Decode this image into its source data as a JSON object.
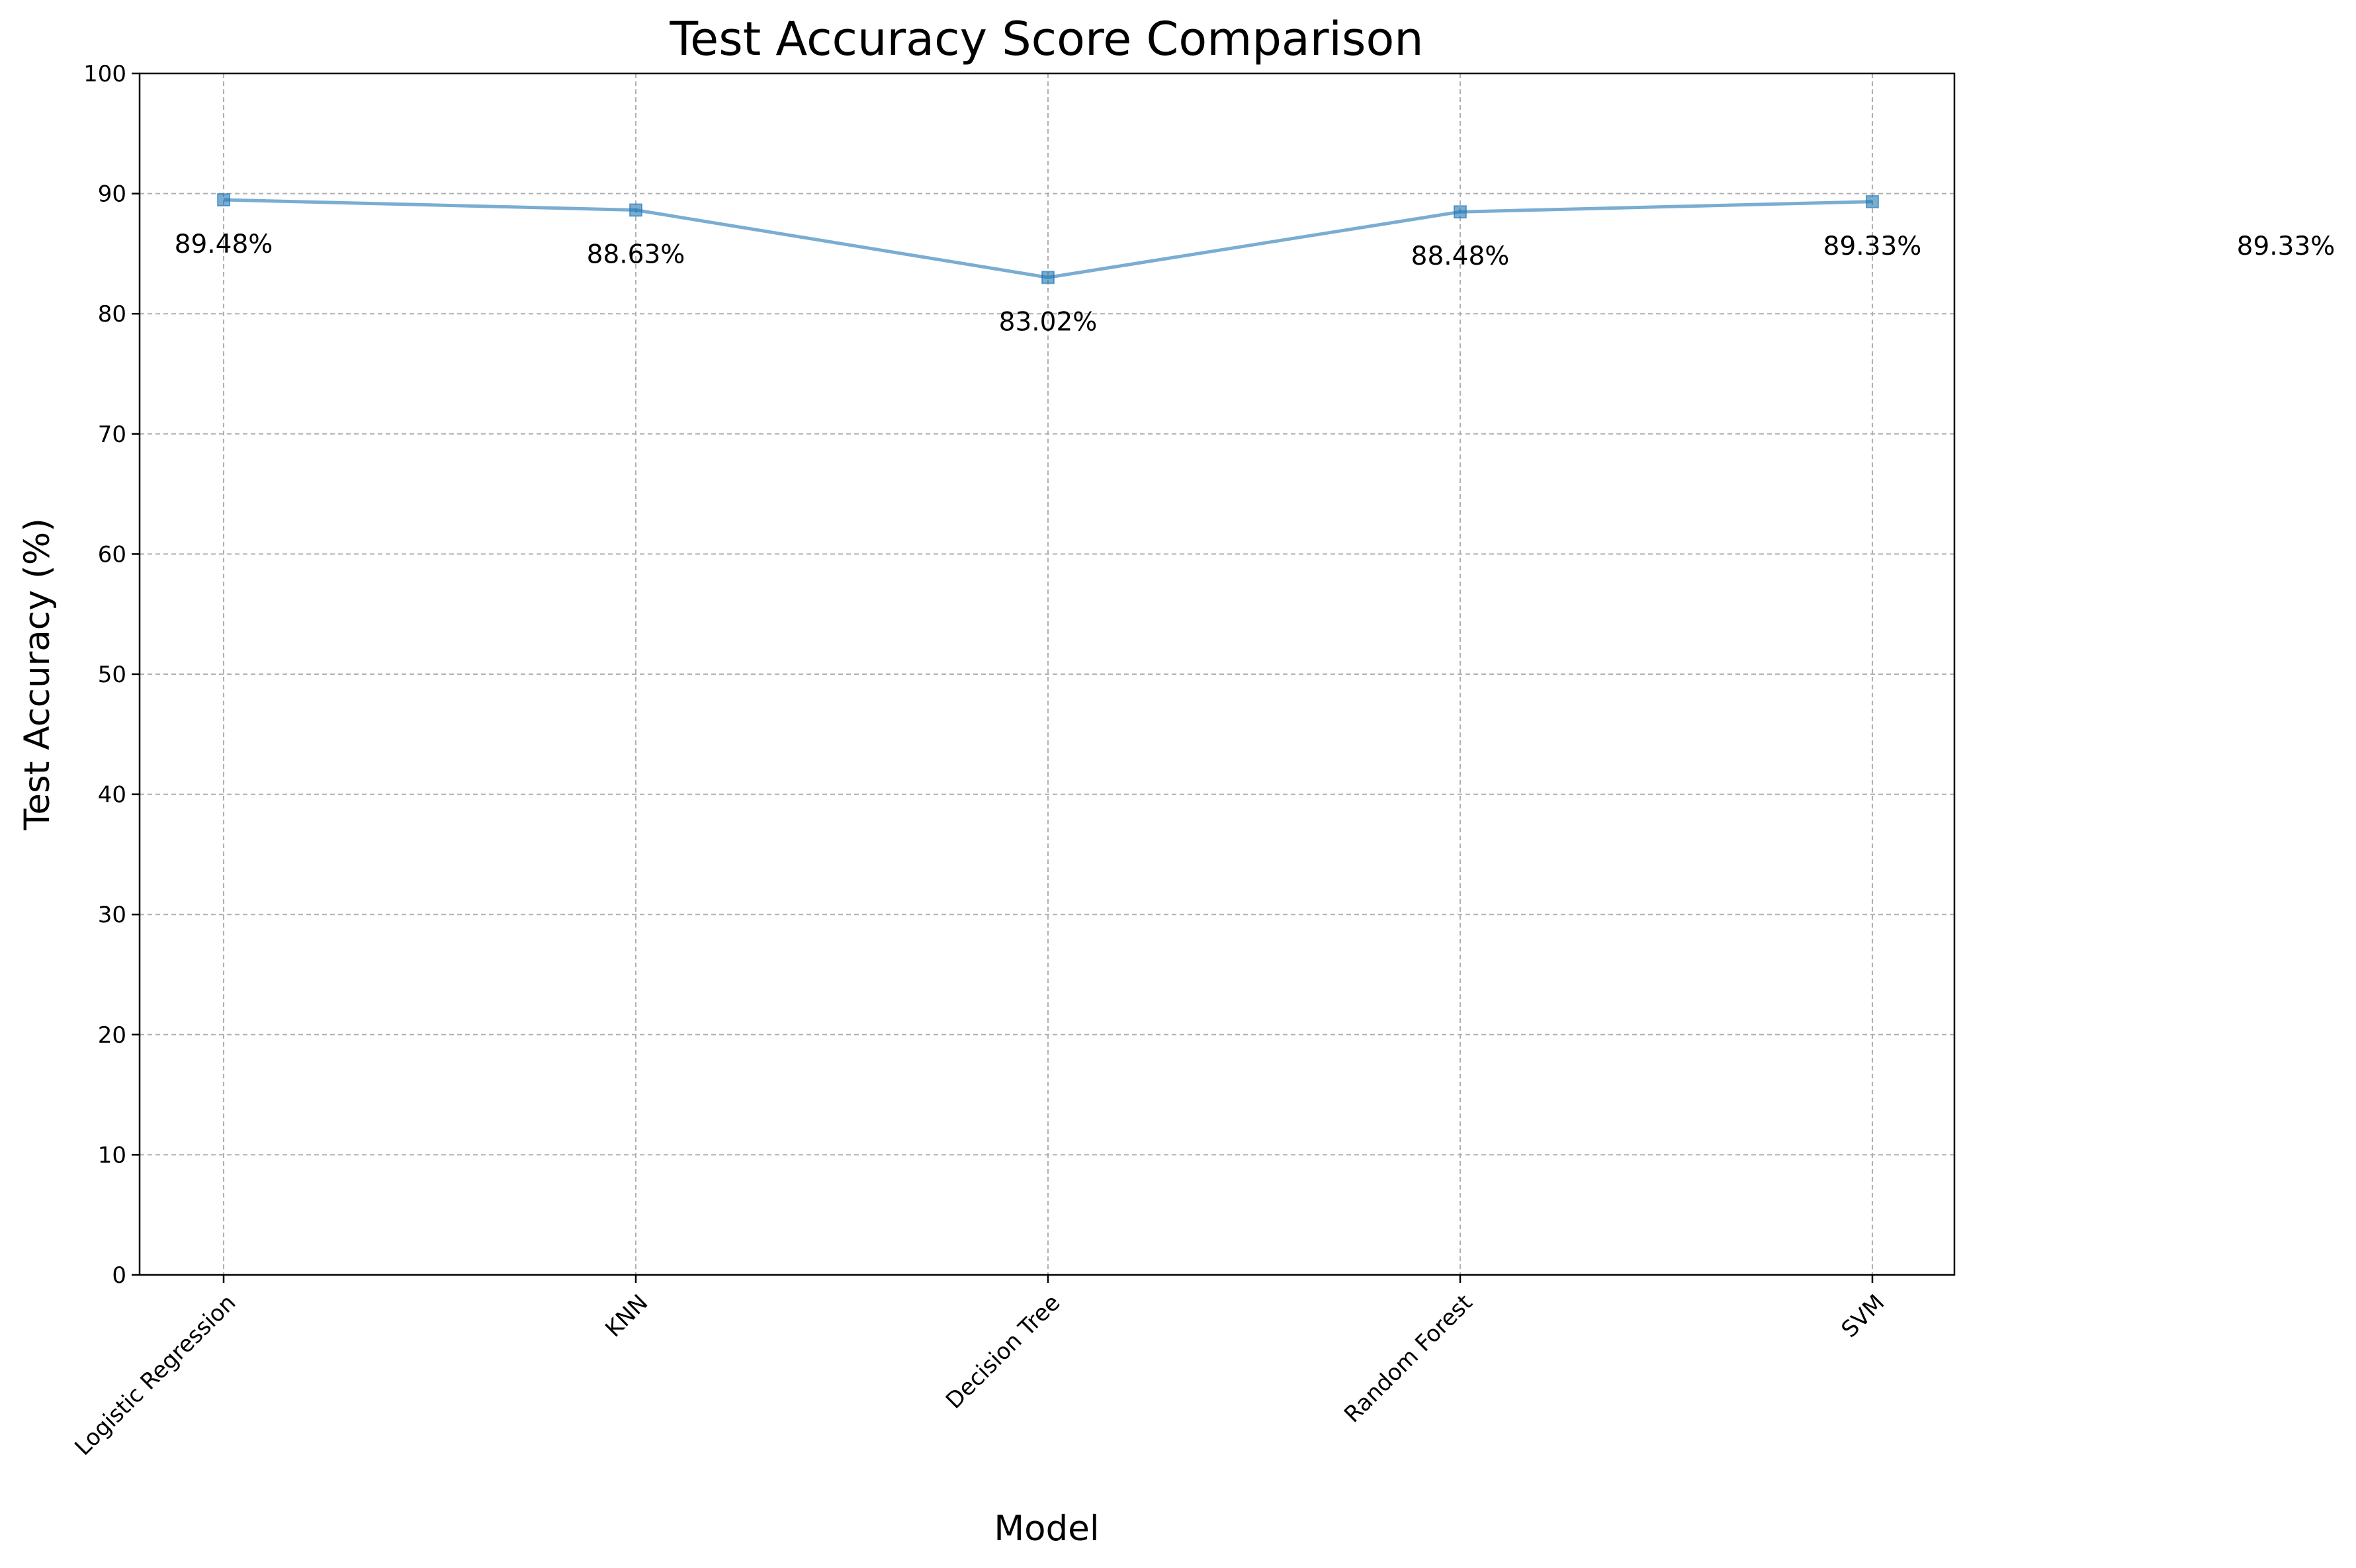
{
  "chart_data": {
    "type": "line",
    "title": "Test Accuracy Score Comparison",
    "xlabel": "Model",
    "ylabel": "Test Accuracy (%)",
    "categories": [
      "Logistic Regression",
      "KNN",
      "Decision Tree",
      "Random Forest",
      "SVM"
    ],
    "values": [
      89.48,
      88.63,
      83.02,
      88.48,
      89.33
    ],
    "data_labels": [
      "89.48%",
      "88.63%",
      "83.02%",
      "88.48%",
      "89.33%"
    ],
    "extra_label": "89.33%",
    "ylim": [
      0,
      100
    ],
    "yticks": [
      0,
      10,
      20,
      30,
      40,
      50,
      60,
      70,
      80,
      90,
      100
    ],
    "grid": true,
    "legend": "none",
    "line_color": "#1f77b4",
    "marker": "square"
  }
}
